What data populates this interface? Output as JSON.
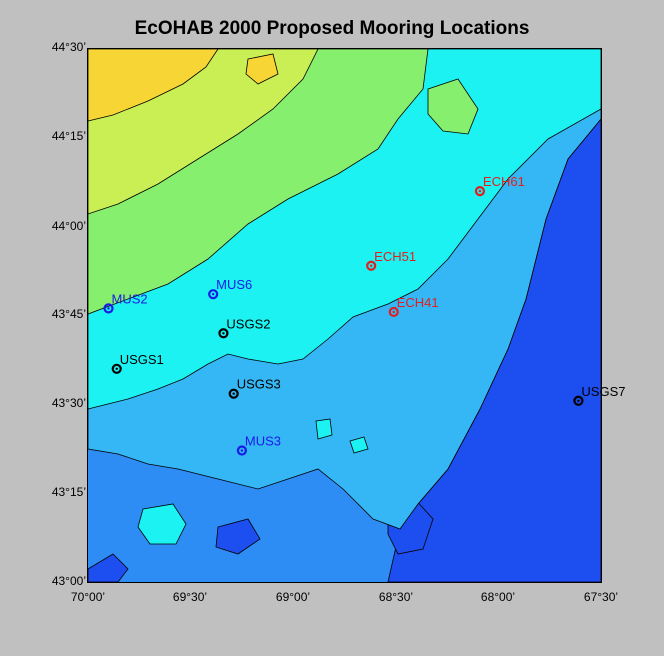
{
  "title": "EcOHAB 2000 Proposed Mooring Locations",
  "lat_ticks": [
    "44°30’",
    "44°15’",
    "44°00’",
    "43°45’",
    "43°30’",
    "43°15’",
    "43°00’"
  ],
  "lon_ticks": [
    "70°00’",
    "69°30’",
    "69°00’",
    "68°30’",
    "68°00’",
    "67°30’"
  ],
  "extent": {
    "lon_west": -70.0,
    "lon_east": -67.5,
    "lat_south": 43.0,
    "lat_north": 44.5
  },
  "colors": {
    "deep": "#1d4ef0",
    "mid_deep": "#2d8df5",
    "mid": "#35b7f5",
    "shallow": "#1cf2f2",
    "land_low": "#86f06e",
    "land_mid": "#c9ef55",
    "land_high": "#f6d534",
    "ech": "#e02020",
    "mus": "#1a1ae6",
    "usgs": "#000000"
  },
  "moorings": [
    {
      "label": "ECH61",
      "group": "ech",
      "lon": -68.09,
      "lat": 44.1
    },
    {
      "label": "ECH51",
      "group": "ech",
      "lon": -68.62,
      "lat": 43.89
    },
    {
      "label": "ECH41",
      "group": "ech",
      "lon": -68.51,
      "lat": 43.76
    },
    {
      "label": "MUS6",
      "group": "mus",
      "lon": -69.39,
      "lat": 43.81
    },
    {
      "label": "MUS2",
      "group": "mus",
      "lon": -69.9,
      "lat": 43.77
    },
    {
      "label": "MUS3",
      "group": "mus",
      "lon": -69.25,
      "lat": 43.37
    },
    {
      "label": "USGS2",
      "group": "usgs",
      "lon": -69.34,
      "lat": 43.7
    },
    {
      "label": "USGS1",
      "group": "usgs",
      "lon": -69.86,
      "lat": 43.6
    },
    {
      "label": "USGS3",
      "group": "usgs",
      "lon": -69.29,
      "lat": 43.53
    },
    {
      "label": "USGS7",
      "group": "usgs",
      "lon": -67.61,
      "lat": 43.51
    }
  ]
}
